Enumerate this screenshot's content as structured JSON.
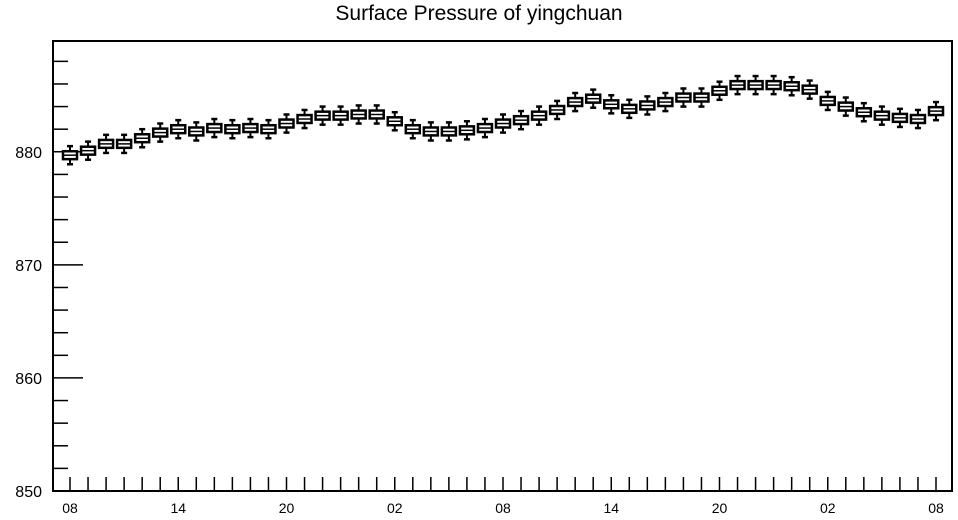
{
  "chart_data": {
    "type": "boxplot",
    "title": "Surface Pressure of yingchuan",
    "xlabel": "",
    "ylabel": "",
    "ylim": [
      850,
      889.8
    ],
    "yticks": [
      "850",
      "860",
      "870",
      "880"
    ],
    "xticks": [
      "08",
      "14",
      "20",
      "02",
      "08",
      "14",
      "20",
      "02",
      "08"
    ],
    "x_tick_hour_index": [
      0,
      6,
      12,
      18,
      24,
      30,
      36,
      42,
      48
    ],
    "hours": 49,
    "medians": [
      879.7,
      880.1,
      880.7,
      880.7,
      881.2,
      881.7,
      882.0,
      881.8,
      882.1,
      882.0,
      882.1,
      882.0,
      882.5,
      882.9,
      883.2,
      883.2,
      883.3,
      883.3,
      882.7,
      882.0,
      881.8,
      881.8,
      881.9,
      882.1,
      882.5,
      882.8,
      883.2,
      883.7,
      884.4,
      884.7,
      884.2,
      883.8,
      884.1,
      884.4,
      884.8,
      884.8,
      885.4,
      885.9,
      885.9,
      885.9,
      885.8,
      885.5,
      884.5,
      884.0,
      883.5,
      883.2,
      883.0,
      882.9,
      883.6
    ],
    "box_half_height": 0.35,
    "whisker": 0.8,
    "grid": false,
    "legend": "none",
    "box_color": "#000000",
    "box_fill": "#ffffff"
  }
}
